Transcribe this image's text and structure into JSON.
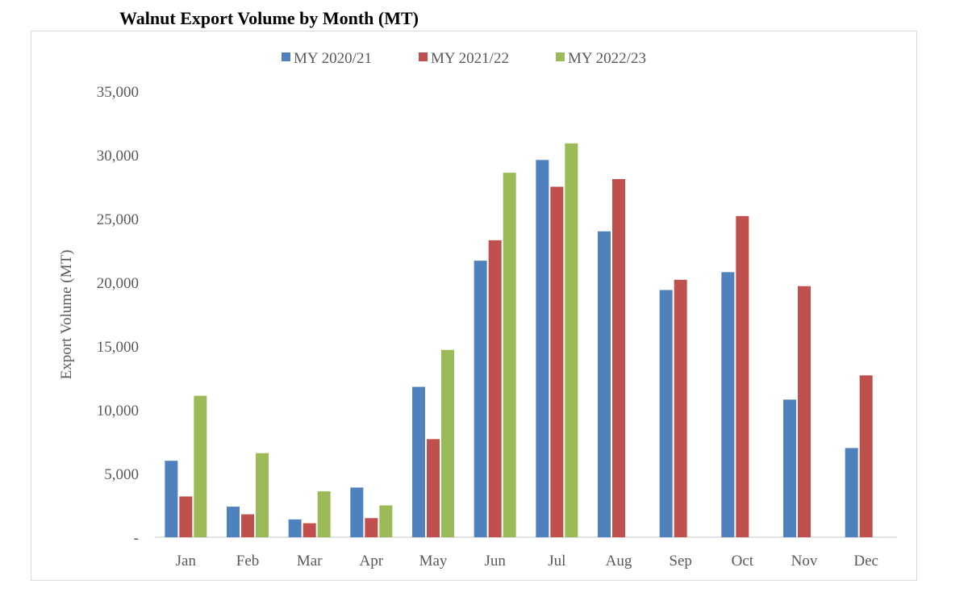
{
  "chart_data": {
    "type": "bar",
    "title": "Walnut Export Volume by Month (MT)",
    "xlabel": "",
    "ylabel": "Export Volume (MT)",
    "ylim": [
      0,
      35000
    ],
    "yticks": [
      0,
      5000,
      10000,
      15000,
      20000,
      25000,
      30000,
      35000
    ],
    "ytick_labels": [
      "-",
      "5,000",
      "10,000",
      "15,000",
      "20,000",
      "25,000",
      "30,000",
      "35,000"
    ],
    "grid": false,
    "legend_position": "top-center",
    "categories": [
      "Jan",
      "Feb",
      "Mar",
      "Apr",
      "May",
      "Jun",
      "Jul",
      "Aug",
      "Sep",
      "Oct",
      "Nov",
      "Dec"
    ],
    "series": [
      {
        "name": "MY 2020/21",
        "color": "#4f81bd",
        "values": [
          6000,
          2400,
          1400,
          3900,
          11800,
          21700,
          29600,
          24000,
          19400,
          20800,
          10800,
          7000
        ]
      },
      {
        "name": "MY 2021/22",
        "color": "#c0504d",
        "values": [
          3200,
          1800,
          1100,
          1500,
          7700,
          23300,
          27500,
          28100,
          20200,
          25200,
          19700,
          12700
        ]
      },
      {
        "name": "MY 2022/23",
        "color": "#9bbb59",
        "values": [
          11100,
          6600,
          3600,
          2500,
          14700,
          28600,
          30900,
          null,
          null,
          null,
          null,
          null
        ]
      }
    ]
  }
}
